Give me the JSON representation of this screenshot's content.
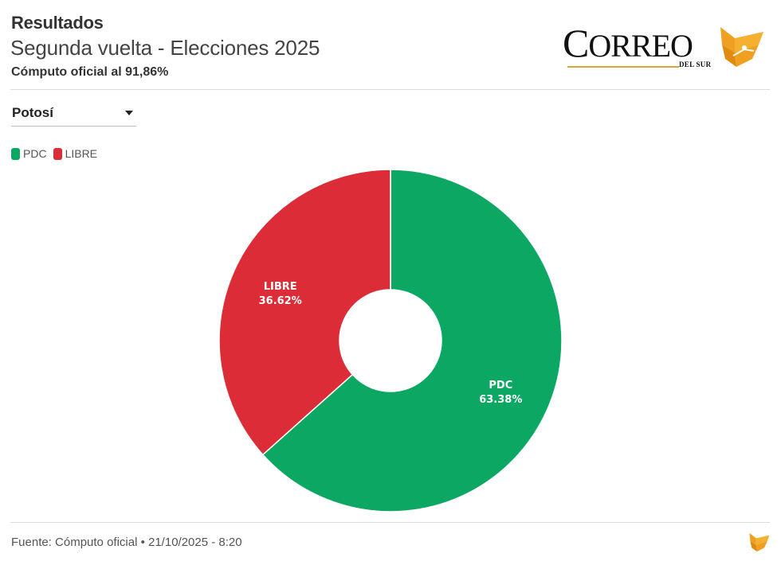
{
  "header": {
    "title": "Resultados",
    "subtitle": "Segunda vuelta - Elecciones 2025",
    "computo": "Cómputo oficial al 91,86%"
  },
  "logo": {
    "name_big": "C",
    "name_rest": "ORREO",
    "sub": "DEL SUR"
  },
  "region_select": {
    "selected": "Potosí"
  },
  "colors": {
    "pdc": "#0ca863",
    "libre": "#dc2c37",
    "logo_orange": "#f0a020"
  },
  "chart_data": {
    "type": "pie",
    "donut": true,
    "categories": [
      "PDC",
      "LIBRE"
    ],
    "values": [
      63.38,
      36.62
    ],
    "labels": [
      "63.38%",
      "36.62%"
    ],
    "colors": [
      "#0ca863",
      "#dc2c37"
    ],
    "start": "top",
    "direction": "clockwise",
    "legend": {
      "entries": [
        "PDC",
        "LIBRE"
      ],
      "placement": "top-left"
    },
    "title": "Resultados"
  },
  "footer": {
    "source": "Fuente: Cómputo oficial • 21/10/2025 - 8:20"
  }
}
